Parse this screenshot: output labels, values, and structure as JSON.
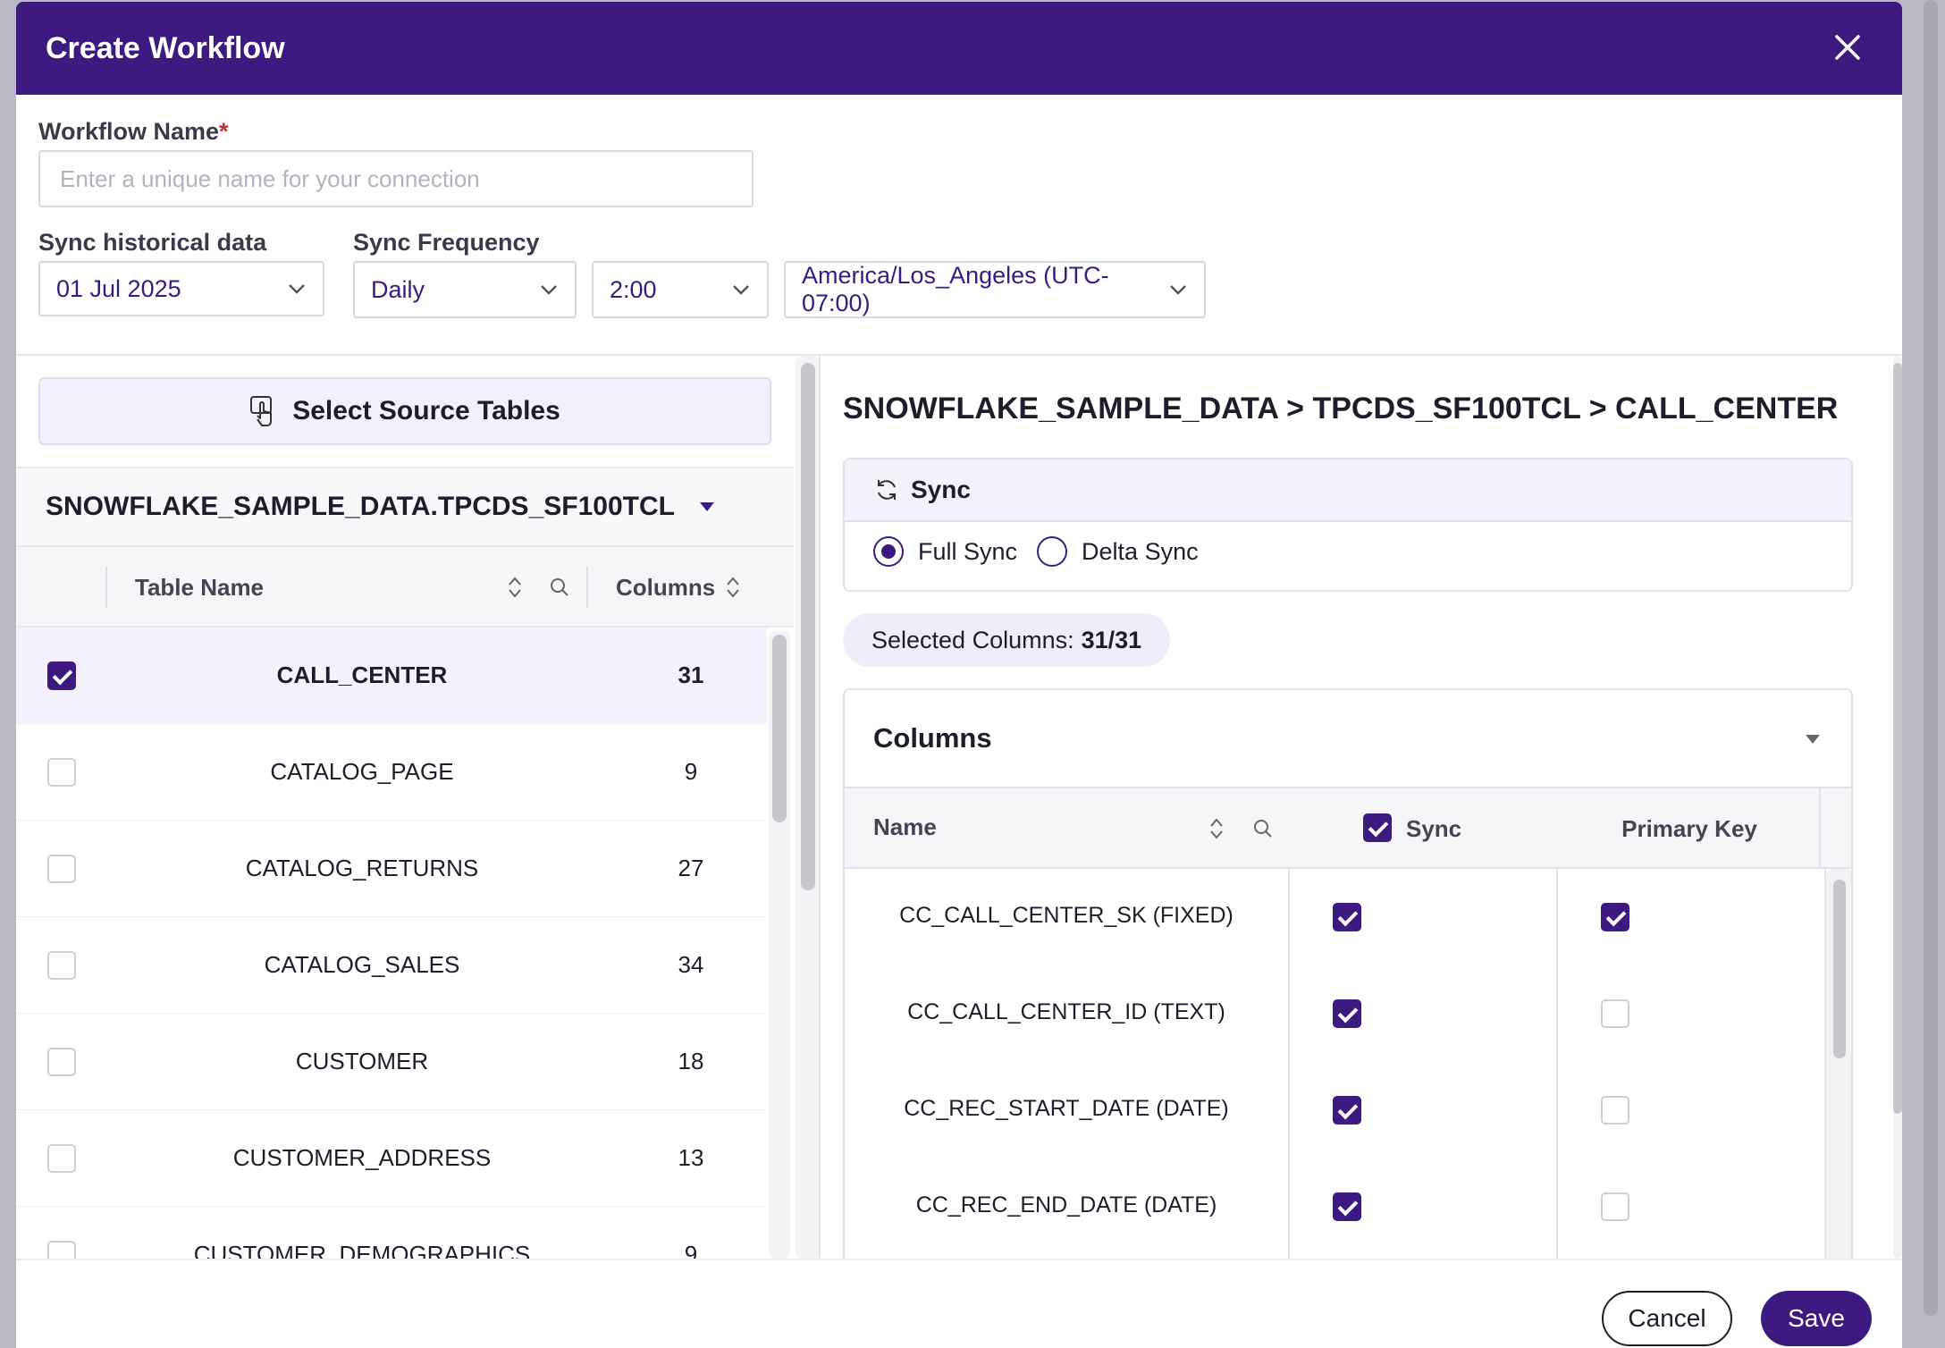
{
  "header": {
    "title": "Create Workflow"
  },
  "form": {
    "workflow_name_label": "Workflow Name",
    "required_mark": "*",
    "workflow_name_placeholder": "Enter a unique name for your connection",
    "workflow_name_value": "",
    "sync_historical_label": "Sync historical data",
    "sync_historical_value": "01 Jul 2025",
    "sync_frequency_label": "Sync Frequency",
    "frequency_value": "Daily",
    "time_value": "2:00",
    "timezone_value": "America/Los_Angeles (UTC-07:00)"
  },
  "left": {
    "select_tables_label": "Select Source Tables",
    "database": "SNOWFLAKE_SAMPLE_DATA.TPCDS_SF100TCL",
    "headers": {
      "table_name": "Table Name",
      "columns": "Columns"
    },
    "rows": [
      {
        "name": "CALL_CENTER",
        "columns": "31",
        "checked": true
      },
      {
        "name": "CATALOG_PAGE",
        "columns": "9",
        "checked": false
      },
      {
        "name": "CATALOG_RETURNS",
        "columns": "27",
        "checked": false
      },
      {
        "name": "CATALOG_SALES",
        "columns": "34",
        "checked": false
      },
      {
        "name": "CUSTOMER",
        "columns": "18",
        "checked": false
      },
      {
        "name": "CUSTOMER_ADDRESS",
        "columns": "13",
        "checked": false
      },
      {
        "name": "CUSTOMER_DEMOGRAPHICS",
        "columns": "9",
        "checked": false
      }
    ]
  },
  "right": {
    "breadcrumb": "SNOWFLAKE_SAMPLE_DATA > TPCDS_SF100TCL > CALL_CENTER",
    "sync_title": "Sync",
    "full_sync_label": "Full Sync",
    "delta_sync_label": "Delta Sync",
    "selected_mode": "full",
    "selected_columns_label": "Selected Columns:",
    "selected_columns_value": "31/31",
    "columns_title": "Columns",
    "col_headers": {
      "name": "Name",
      "sync": "Sync",
      "primary_key": "Primary Key"
    },
    "columns": [
      {
        "name": "CC_CALL_CENTER_SK (FIXED)",
        "sync": true,
        "pk": true
      },
      {
        "name": "CC_CALL_CENTER_ID (TEXT)",
        "sync": true,
        "pk": false
      },
      {
        "name": "CC_REC_START_DATE (DATE)",
        "sync": true,
        "pk": false
      },
      {
        "name": "CC_REC_END_DATE (DATE)",
        "sync": true,
        "pk": false
      }
    ]
  },
  "footer": {
    "cancel_label": "Cancel",
    "save_label": "Save"
  },
  "colors": {
    "brand": "#3d1a80",
    "accent_bg": "#f1f0fb",
    "overlay": "#b9b8c2"
  }
}
